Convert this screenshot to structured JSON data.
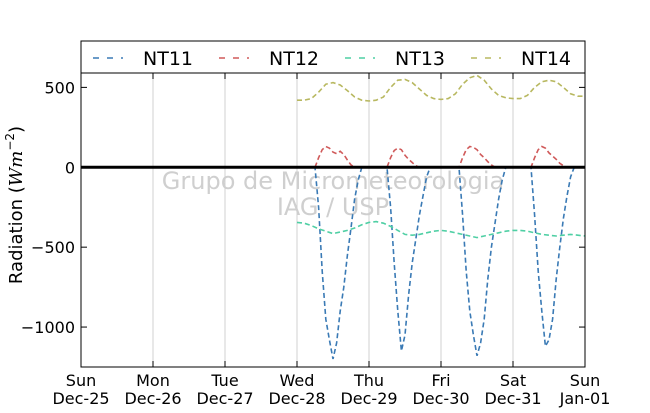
{
  "chart_data": {
    "type": "line",
    "ylabel_prefix": "Radiation (",
    "ylabel_unit_base": "Wm",
    "ylabel_unit_exp": "−2",
    "ylabel_suffix": ")",
    "ylim": [
      -1250,
      590
    ],
    "yticks": [
      500,
      0,
      -500,
      -1000
    ],
    "ytick_labels": [
      "500",
      "0",
      "−500",
      "−1000"
    ],
    "xlim": [
      0,
      7
    ],
    "xticks": [
      0,
      1,
      2,
      3,
      4,
      5,
      6,
      7
    ],
    "xtick_labels": [
      {
        "day": "Sun",
        "date": "Dec-25"
      },
      {
        "day": "Mon",
        "date": "Dec-26"
      },
      {
        "day": "Tue",
        "date": "Dec-27"
      },
      {
        "day": "Wed",
        "date": "Dec-28"
      },
      {
        "day": "Thu",
        "date": "Dec-29"
      },
      {
        "day": "Fri",
        "date": "Dec-30"
      },
      {
        "day": "Sat",
        "date": "Dec-31"
      },
      {
        "day": "Sun",
        "date": "Jan-01"
      }
    ],
    "grid": "vertical",
    "legend_position": "top",
    "watermark_line1": "Grupo de Micrometeorologia",
    "watermark_line2": "IAG / USP",
    "zero_line": 0,
    "series": [
      {
        "name": "NT11",
        "color": "#3a7ab5",
        "x": [
          3.0,
          3.25,
          3.3,
          3.35,
          3.4,
          3.45,
          3.5,
          3.55,
          3.6,
          3.65,
          3.7,
          3.75,
          3.8,
          3.85,
          3.9,
          4.0,
          4.25,
          4.3,
          4.35,
          4.4,
          4.45,
          4.5,
          4.55,
          4.6,
          4.65,
          4.7,
          4.75,
          4.8,
          4.85,
          4.9,
          5.0,
          5.25,
          5.3,
          5.35,
          5.4,
          5.45,
          5.5,
          5.55,
          5.6,
          5.65,
          5.7,
          5.75,
          5.8,
          5.85,
          5.9,
          6.0,
          6.25,
          6.3,
          6.35,
          6.4,
          6.45,
          6.5,
          6.55,
          6.6,
          6.65,
          6.7,
          6.75,
          6.8,
          6.85,
          6.9
        ],
        "y": [
          0,
          0,
          -250,
          -650,
          -950,
          -1080,
          -1200,
          -1100,
          -900,
          -750,
          -550,
          -380,
          -200,
          -80,
          0,
          0,
          0,
          -250,
          -600,
          -900,
          -1150,
          -1050,
          -800,
          -600,
          -450,
          -300,
          -180,
          -60,
          0,
          0,
          0,
          0,
          -300,
          -650,
          -900,
          -1050,
          -1180,
          -1100,
          -950,
          -700,
          -500,
          -350,
          -200,
          -80,
          0,
          0,
          0,
          -300,
          -650,
          -900,
          -1120,
          -1080,
          -950,
          -700,
          -500,
          -320,
          -180,
          -60,
          0,
          0
        ]
      },
      {
        "name": "NT12",
        "color": "#d05a5a",
        "x": [
          3.25,
          3.3,
          3.35,
          3.4,
          3.45,
          3.5,
          3.55,
          3.6,
          3.65,
          3.7,
          3.75,
          3.8,
          4.25,
          4.3,
          4.35,
          4.4,
          4.45,
          4.5,
          4.55,
          4.6,
          4.65,
          4.7,
          5.25,
          5.3,
          5.35,
          5.4,
          5.45,
          5.5,
          5.55,
          5.6,
          5.65,
          5.7,
          5.75,
          6.25,
          6.3,
          6.35,
          6.4,
          6.45,
          6.5,
          6.55,
          6.6,
          6.65,
          6.7,
          6.75
        ],
        "y": [
          0,
          60,
          110,
          130,
          120,
          95,
          85,
          100,
          80,
          45,
          15,
          0,
          0,
          60,
          105,
          120,
          110,
          75,
          50,
          30,
          10,
          0,
          0,
          60,
          110,
          130,
          125,
          110,
          80,
          60,
          35,
          15,
          0,
          0,
          60,
          110,
          130,
          120,
          90,
          70,
          50,
          25,
          10,
          0
        ]
      },
      {
        "name": "NT13",
        "color": "#4fcfa4",
        "x": [
          3.0,
          3.1,
          3.2,
          3.3,
          3.4,
          3.5,
          3.6,
          3.7,
          3.8,
          3.9,
          4.0,
          4.1,
          4.2,
          4.3,
          4.4,
          4.5,
          4.6,
          4.7,
          4.8,
          4.9,
          5.0,
          5.1,
          5.2,
          5.3,
          5.4,
          5.5,
          5.6,
          5.7,
          5.8,
          5.9,
          6.0,
          6.1,
          6.2,
          6.3,
          6.4,
          6.5,
          6.6,
          6.7,
          6.8,
          6.9,
          7.0
        ],
        "y": [
          -345,
          -350,
          -365,
          -385,
          -400,
          -415,
          -405,
          -395,
          -380,
          -360,
          -345,
          -340,
          -350,
          -370,
          -395,
          -420,
          -425,
          -420,
          -410,
          -400,
          -395,
          -400,
          -410,
          -420,
          -430,
          -440,
          -430,
          -420,
          -410,
          -400,
          -395,
          -395,
          -400,
          -410,
          -420,
          -425,
          -430,
          -425,
          -420,
          -425,
          -430
        ]
      },
      {
        "name": "NT14",
        "color": "#b8b860",
        "x": [
          3.0,
          3.1,
          3.2,
          3.3,
          3.4,
          3.5,
          3.6,
          3.7,
          3.8,
          3.9,
          4.0,
          4.1,
          4.2,
          4.3,
          4.4,
          4.5,
          4.6,
          4.7,
          4.8,
          4.9,
          5.0,
          5.1,
          5.2,
          5.3,
          5.4,
          5.5,
          5.6,
          5.7,
          5.8,
          5.9,
          6.0,
          6.1,
          6.2,
          6.3,
          6.4,
          6.5,
          6.6,
          6.7,
          6.8,
          6.9,
          7.0
        ],
        "y": [
          420,
          420,
          430,
          470,
          520,
          530,
          515,
          480,
          440,
          420,
          415,
          420,
          440,
          500,
          545,
          550,
          530,
          490,
          450,
          430,
          425,
          430,
          460,
          520,
          560,
          575,
          545,
          490,
          450,
          435,
          430,
          430,
          450,
          500,
          535,
          545,
          535,
          500,
          460,
          445,
          445
        ]
      }
    ]
  }
}
